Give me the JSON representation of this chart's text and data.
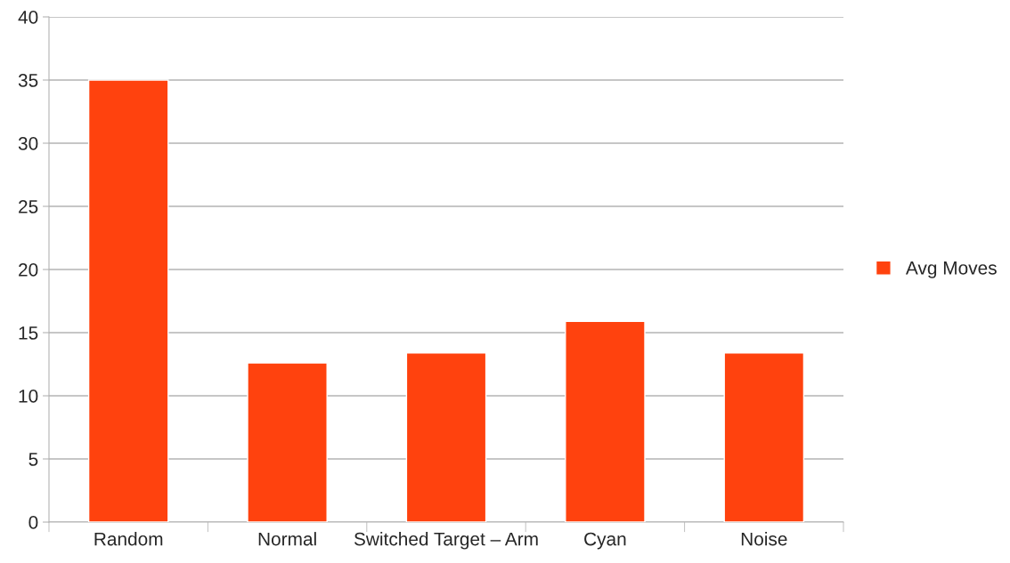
{
  "chart_data": {
    "type": "bar",
    "categories": [
      "Random",
      "Normal",
      "Switched Target – Arm",
      "Cyan",
      "Noise"
    ],
    "series": [
      {
        "name": "Avg Moves",
        "color": "#ff420e",
        "values": [
          35,
          12.6,
          13.4,
          15.9,
          13.4
        ]
      }
    ],
    "ylim": [
      0,
      40
    ],
    "yticks": [
      0,
      5,
      10,
      15,
      20,
      25,
      30,
      35,
      40
    ],
    "grid": "y",
    "legend": "right"
  }
}
